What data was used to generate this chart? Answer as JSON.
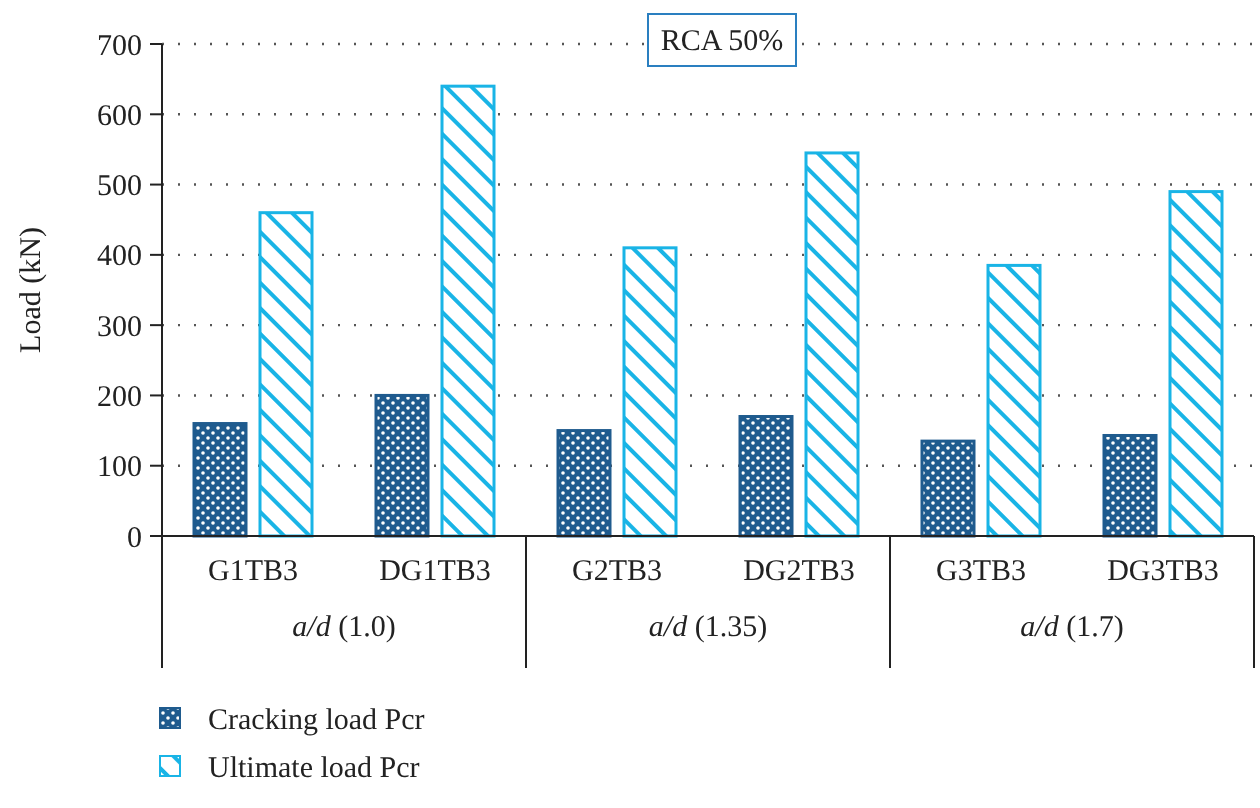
{
  "chart_data": {
    "type": "bar",
    "title": "RCA 50%",
    "ylabel": "Load (kN)",
    "categories": [
      "G1TB3",
      "DG1TB3",
      "G2TB3",
      "DG2TB3",
      "G3TB3",
      "DG3TB3"
    ],
    "series": [
      {
        "name": "Cracking load Pcr",
        "color": "#1f5b8e",
        "values": [
          160,
          200,
          150,
          170,
          135,
          143
        ]
      },
      {
        "name": "Ultimate load Pcr",
        "color": "#19b4e6",
        "values": [
          460,
          640,
          410,
          545,
          385,
          490
        ]
      }
    ],
    "ylim": [
      0,
      700
    ],
    "yticks": [
      0,
      100,
      200,
      300,
      400,
      500,
      600,
      700
    ],
    "grid": "y",
    "legend": "bottom left",
    "annotations": [
      "a/d (1.0)",
      "a/d (1.35)",
      "a/d (1.7)"
    ]
  }
}
